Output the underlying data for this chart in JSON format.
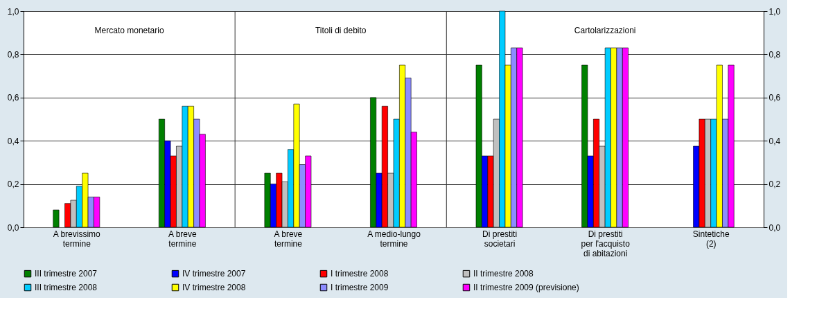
{
  "chart_data": {
    "type": "bar",
    "categories": [
      "A brevissimo termine",
      "A breve termine",
      "A breve termine",
      "A medio-lungo termine",
      "Di prestiti societari",
      "Di prestiti per l'acquisto di abitazioni",
      "Sintetiche  (2)"
    ],
    "series": [
      {
        "name": "III trimestre 2007",
        "color": "#008000",
        "values": [
          0.08,
          0.5,
          0.25,
          0.6,
          0.75,
          0.75,
          null
        ]
      },
      {
        "name": "IV trimestre 2007",
        "color": "#0000ff",
        "values": [
          null,
          0.4,
          0.2,
          0.25,
          0.33,
          0.33,
          0.375
        ]
      },
      {
        "name": "I trimestre 2008",
        "color": "#ff0000",
        "values": [
          0.11,
          0.33,
          0.25,
          0.56,
          0.33,
          0.5,
          0.5
        ]
      },
      {
        "name": "II trimestre 2008",
        "color": "#c0c0c0",
        "values": [
          0.125,
          0.375,
          0.21,
          0.25,
          0.5,
          0.375,
          0.5
        ]
      },
      {
        "name": "III trimestre 2008",
        "color": "#00ccff",
        "values": [
          0.19,
          0.56,
          0.36,
          0.5,
          1.0,
          0.83,
          0.5
        ]
      },
      {
        "name": "IV trimestre 2008",
        "color": "#ffff00",
        "values": [
          0.25,
          0.56,
          0.57,
          0.75,
          0.75,
          0.83,
          0.75
        ]
      },
      {
        "name": "I trimestre 2009",
        "color": "#8c8cff",
        "values": [
          0.14,
          0.5,
          0.29,
          0.69,
          0.83,
          0.83,
          0.5
        ]
      },
      {
        "name": "II trimestre 2009 (previsione)",
        "color": "#ff00ff",
        "values": [
          0.14,
          0.43,
          0.33,
          0.44,
          0.83,
          0.83,
          0.75
        ]
      }
    ],
    "ylim": [
      0,
      1
    ],
    "yticks": [
      {
        "value": 0,
        "label": "0,0"
      },
      {
        "value": 0.2,
        "label": "0,2"
      },
      {
        "value": 0.4,
        "label": "0,4"
      },
      {
        "value": 0.6,
        "label": "0,6"
      },
      {
        "value": 0.8,
        "label": "0,8"
      },
      {
        "value": 1,
        "label": "1,0"
      }
    ],
    "y2lim": [
      0,
      1
    ],
    "y2ticks": [
      {
        "value": 0,
        "label": "0,0"
      },
      {
        "value": 0.2,
        "label": "0,2"
      },
      {
        "value": 0.4,
        "label": "0,4"
      },
      {
        "value": 0.6,
        "label": "0,6"
      },
      {
        "value": 0.8,
        "label": "0,8"
      },
      {
        "value": 1,
        "label": "1,0"
      }
    ],
    "annotations": [
      "Mercato monetario",
      "Titoli di debito",
      "Cartolarizzazioni"
    ],
    "grid": "y",
    "legend": "bottom"
  }
}
